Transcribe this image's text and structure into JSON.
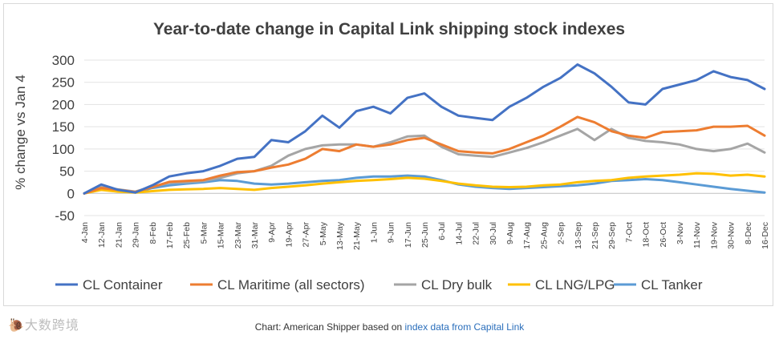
{
  "caption": {
    "prefix": "Chart: American Shipper based on ",
    "link_text": "index data from Capital Link"
  },
  "watermark": {
    "text": "🐌大数跨境"
  },
  "chart_data": {
    "type": "line",
    "title": "Year-to-date change in Capital Link shipping stock indexes",
    "xlabel": "",
    "ylabel": "% change vs Jan 4",
    "ylim": [
      -50,
      300
    ],
    "yticks": [
      -50,
      0,
      50,
      100,
      150,
      200,
      250,
      300
    ],
    "grid": "horizontal",
    "legend": "bottom",
    "categories": [
      "4-Jan",
      "12-Jan",
      "21-Jan",
      "29-Jan",
      "8-Feb",
      "17-Feb",
      "25-Feb",
      "5-Mar",
      "15-Mar",
      "23-Mar",
      "31-Mar",
      "9-Apr",
      "19-Apr",
      "27-Apr",
      "5-May",
      "13-May",
      "21-May",
      "1-Jun",
      "9-Jun",
      "17-Jun",
      "25-Jun",
      "6-Jul",
      "14-Jul",
      "22-Jul",
      "30-Jul",
      "9-Aug",
      "17-Aug",
      "25-Aug",
      "2-Sep",
      "13-Sep",
      "21-Sep",
      "29-Sep",
      "7-Oct",
      "18-Oct",
      "26-Oct",
      "3-Nov",
      "11-Nov",
      "19-Nov",
      "30-Nov",
      "8-Dec",
      "16-Dec"
    ],
    "series": [
      {
        "name": "CL Container",
        "color": "#4472c4",
        "values": [
          0,
          20,
          8,
          2,
          18,
          38,
          45,
          50,
          62,
          78,
          82,
          120,
          115,
          140,
          175,
          148,
          185,
          195,
          180,
          215,
          225,
          195,
          175,
          170,
          165,
          195,
          215,
          240,
          260,
          290,
          270,
          240,
          205,
          200,
          235,
          245,
          255,
          275,
          262,
          255,
          235
        ]
      },
      {
        "name": "CL Maritime (all sectors)",
        "color": "#ed7d31",
        "values": [
          0,
          12,
          8,
          3,
          14,
          26,
          28,
          30,
          40,
          48,
          50,
          58,
          65,
          78,
          100,
          95,
          110,
          105,
          110,
          120,
          125,
          110,
          95,
          92,
          90,
          100,
          115,
          130,
          150,
          172,
          160,
          140,
          130,
          125,
          138,
          140,
          142,
          150,
          150,
          152,
          130
        ]
      },
      {
        "name": "CL Dry bulk",
        "color": "#a5a5a5",
        "values": [
          0,
          14,
          9,
          4,
          15,
          24,
          25,
          28,
          35,
          45,
          50,
          62,
          85,
          100,
          108,
          110,
          110,
          105,
          115,
          128,
          130,
          105,
          88,
          85,
          82,
          92,
          102,
          115,
          130,
          145,
          120,
          145,
          125,
          118,
          115,
          110,
          100,
          95,
          100,
          112,
          92
        ]
      },
      {
        "name": "CL LNG/LPG",
        "color": "#ffc000",
        "values": [
          0,
          8,
          4,
          2,
          5,
          8,
          9,
          10,
          12,
          10,
          8,
          12,
          15,
          18,
          22,
          25,
          28,
          30,
          32,
          35,
          33,
          28,
          22,
          18,
          15,
          14,
          15,
          18,
          20,
          25,
          28,
          30,
          35,
          38,
          40,
          42,
          45,
          44,
          40,
          42,
          38
        ]
      },
      {
        "name": "CL Tanker",
        "color": "#5b9bd5",
        "values": [
          0,
          10,
          7,
          2,
          12,
          18,
          22,
          25,
          30,
          28,
          22,
          20,
          22,
          25,
          28,
          30,
          35,
          38,
          38,
          40,
          38,
          30,
          20,
          15,
          12,
          10,
          12,
          14,
          16,
          18,
          22,
          28,
          30,
          32,
          30,
          25,
          20,
          15,
          10,
          6,
          2
        ]
      }
    ]
  }
}
